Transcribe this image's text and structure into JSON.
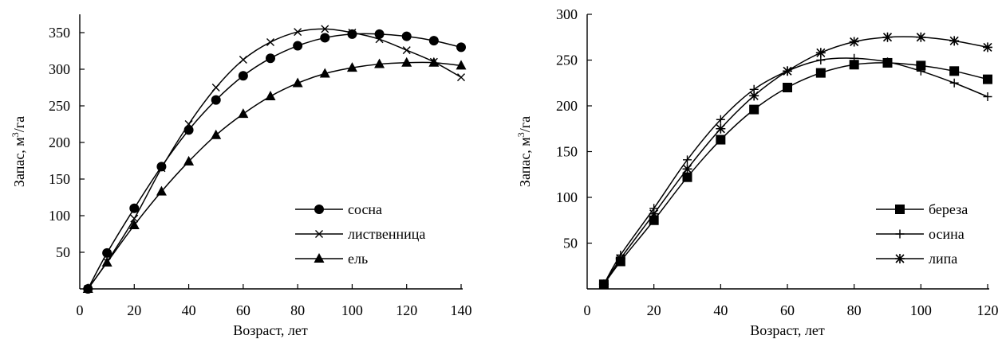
{
  "chart_data": [
    {
      "type": "line",
      "xlabel": "Возраст, лет",
      "ylabel": "Запас, м³/га",
      "ylabel_main": "Запас, м",
      "ylabel_sup": "3",
      "ylabel_tail": "/га",
      "xlim": [
        0,
        140
      ],
      "ylim": [
        0,
        375
      ],
      "x_ticks": [
        0,
        20,
        40,
        60,
        80,
        100,
        120,
        140
      ],
      "y_ticks": [
        50,
        100,
        150,
        200,
        250,
        300,
        350
      ],
      "grid": false,
      "legend_position": "bottom-right",
      "series": [
        {
          "name": "сосна",
          "marker": "circle",
          "x": [
            3,
            10,
            20,
            30,
            40,
            50,
            60,
            70,
            80,
            90,
            100,
            110,
            120,
            130,
            140
          ],
          "y": [
            0,
            49,
            110,
            167,
            217,
            258,
            291,
            315,
            332,
            343,
            348,
            348,
            345,
            339,
            330
          ]
        },
        {
          "name": "лиственница",
          "marker": "x",
          "x": [
            3,
            10,
            20,
            30,
            40,
            50,
            60,
            70,
            80,
            90,
            100,
            110,
            120,
            130,
            140
          ],
          "y": [
            0,
            37,
            96,
            165,
            225,
            275,
            313,
            337,
            351,
            355,
            350,
            341,
            326,
            310,
            289
          ]
        },
        {
          "name": "ель",
          "marker": "triangle",
          "x": [
            3,
            10,
            20,
            30,
            40,
            50,
            60,
            70,
            80,
            90,
            100,
            110,
            120,
            130,
            140
          ],
          "y": [
            0,
            36,
            87,
            133,
            174,
            210,
            239,
            263,
            281,
            294,
            302,
            307,
            309,
            309,
            305
          ]
        }
      ]
    },
    {
      "type": "line",
      "xlabel": "Возраст, лет",
      "ylabel": "Запас, м³/га",
      "ylabel_main": "Запас, м",
      "ylabel_sup": "3",
      "ylabel_tail": "/га",
      "xlim": [
        0,
        120
      ],
      "ylim": [
        0,
        300
      ],
      "x_ticks": [
        0,
        20,
        40,
        60,
        80,
        100,
        120
      ],
      "y_ticks": [
        50,
        100,
        150,
        200,
        250,
        300
      ],
      "grid": false,
      "legend_position": "bottom-right",
      "series": [
        {
          "name": "береза",
          "marker": "square",
          "x": [
            5,
            10,
            20,
            30,
            40,
            50,
            60,
            70,
            80,
            90,
            100,
            110,
            120
          ],
          "y": [
            5,
            30,
            75,
            122,
            163,
            196,
            220,
            236,
            245,
            247,
            244,
            238,
            229
          ]
        },
        {
          "name": "осина",
          "marker": "plus",
          "x": [
            5,
            10,
            20,
            30,
            40,
            50,
            60,
            70,
            80,
            90,
            100,
            110,
            120
          ],
          "y": [
            5,
            37,
            88,
            141,
            185,
            218,
            238,
            250,
            252,
            248,
            238,
            225,
            210
          ]
        },
        {
          "name": "липа",
          "marker": "star",
          "x": [
            5,
            10,
            20,
            30,
            40,
            50,
            60,
            70,
            80,
            90,
            100,
            110,
            120
          ],
          "y": [
            5,
            33,
            82,
            131,
            175,
            211,
            238,
            258,
            270,
            275,
            275,
            271,
            264
          ]
        }
      ]
    }
  ]
}
